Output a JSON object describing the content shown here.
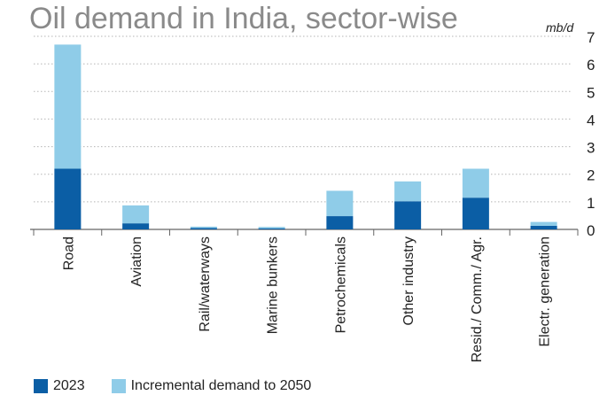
{
  "chart_data": {
    "type": "bar",
    "stacked": true,
    "title": "Oil demand in India, sector-wise",
    "unit": "mb/d",
    "categories": [
      "Road",
      "Aviation",
      "Rail/waterways",
      "Marine bunkers",
      "Petrochemicals",
      "Other industry",
      "Resid./ Comm./ Agr.",
      "Electr. generation"
    ],
    "series": [
      {
        "name": "2023",
        "color": "#0b5ea5",
        "values": [
          2.2,
          0.22,
          0.05,
          0.04,
          0.48,
          1.02,
          1.15,
          0.13
        ]
      },
      {
        "name": "Incremental demand to 2050",
        "color": "#8fcce8",
        "values": [
          4.5,
          0.65,
          0.05,
          0.05,
          0.92,
          0.72,
          1.05,
          0.14
        ]
      }
    ],
    "y_ticks": [
      0,
      1,
      2,
      3,
      4,
      5,
      6,
      7
    ],
    "ylim": [
      0,
      7
    ],
    "y_axis_side": "right",
    "grid": true,
    "legend_position": "bottom-left"
  }
}
